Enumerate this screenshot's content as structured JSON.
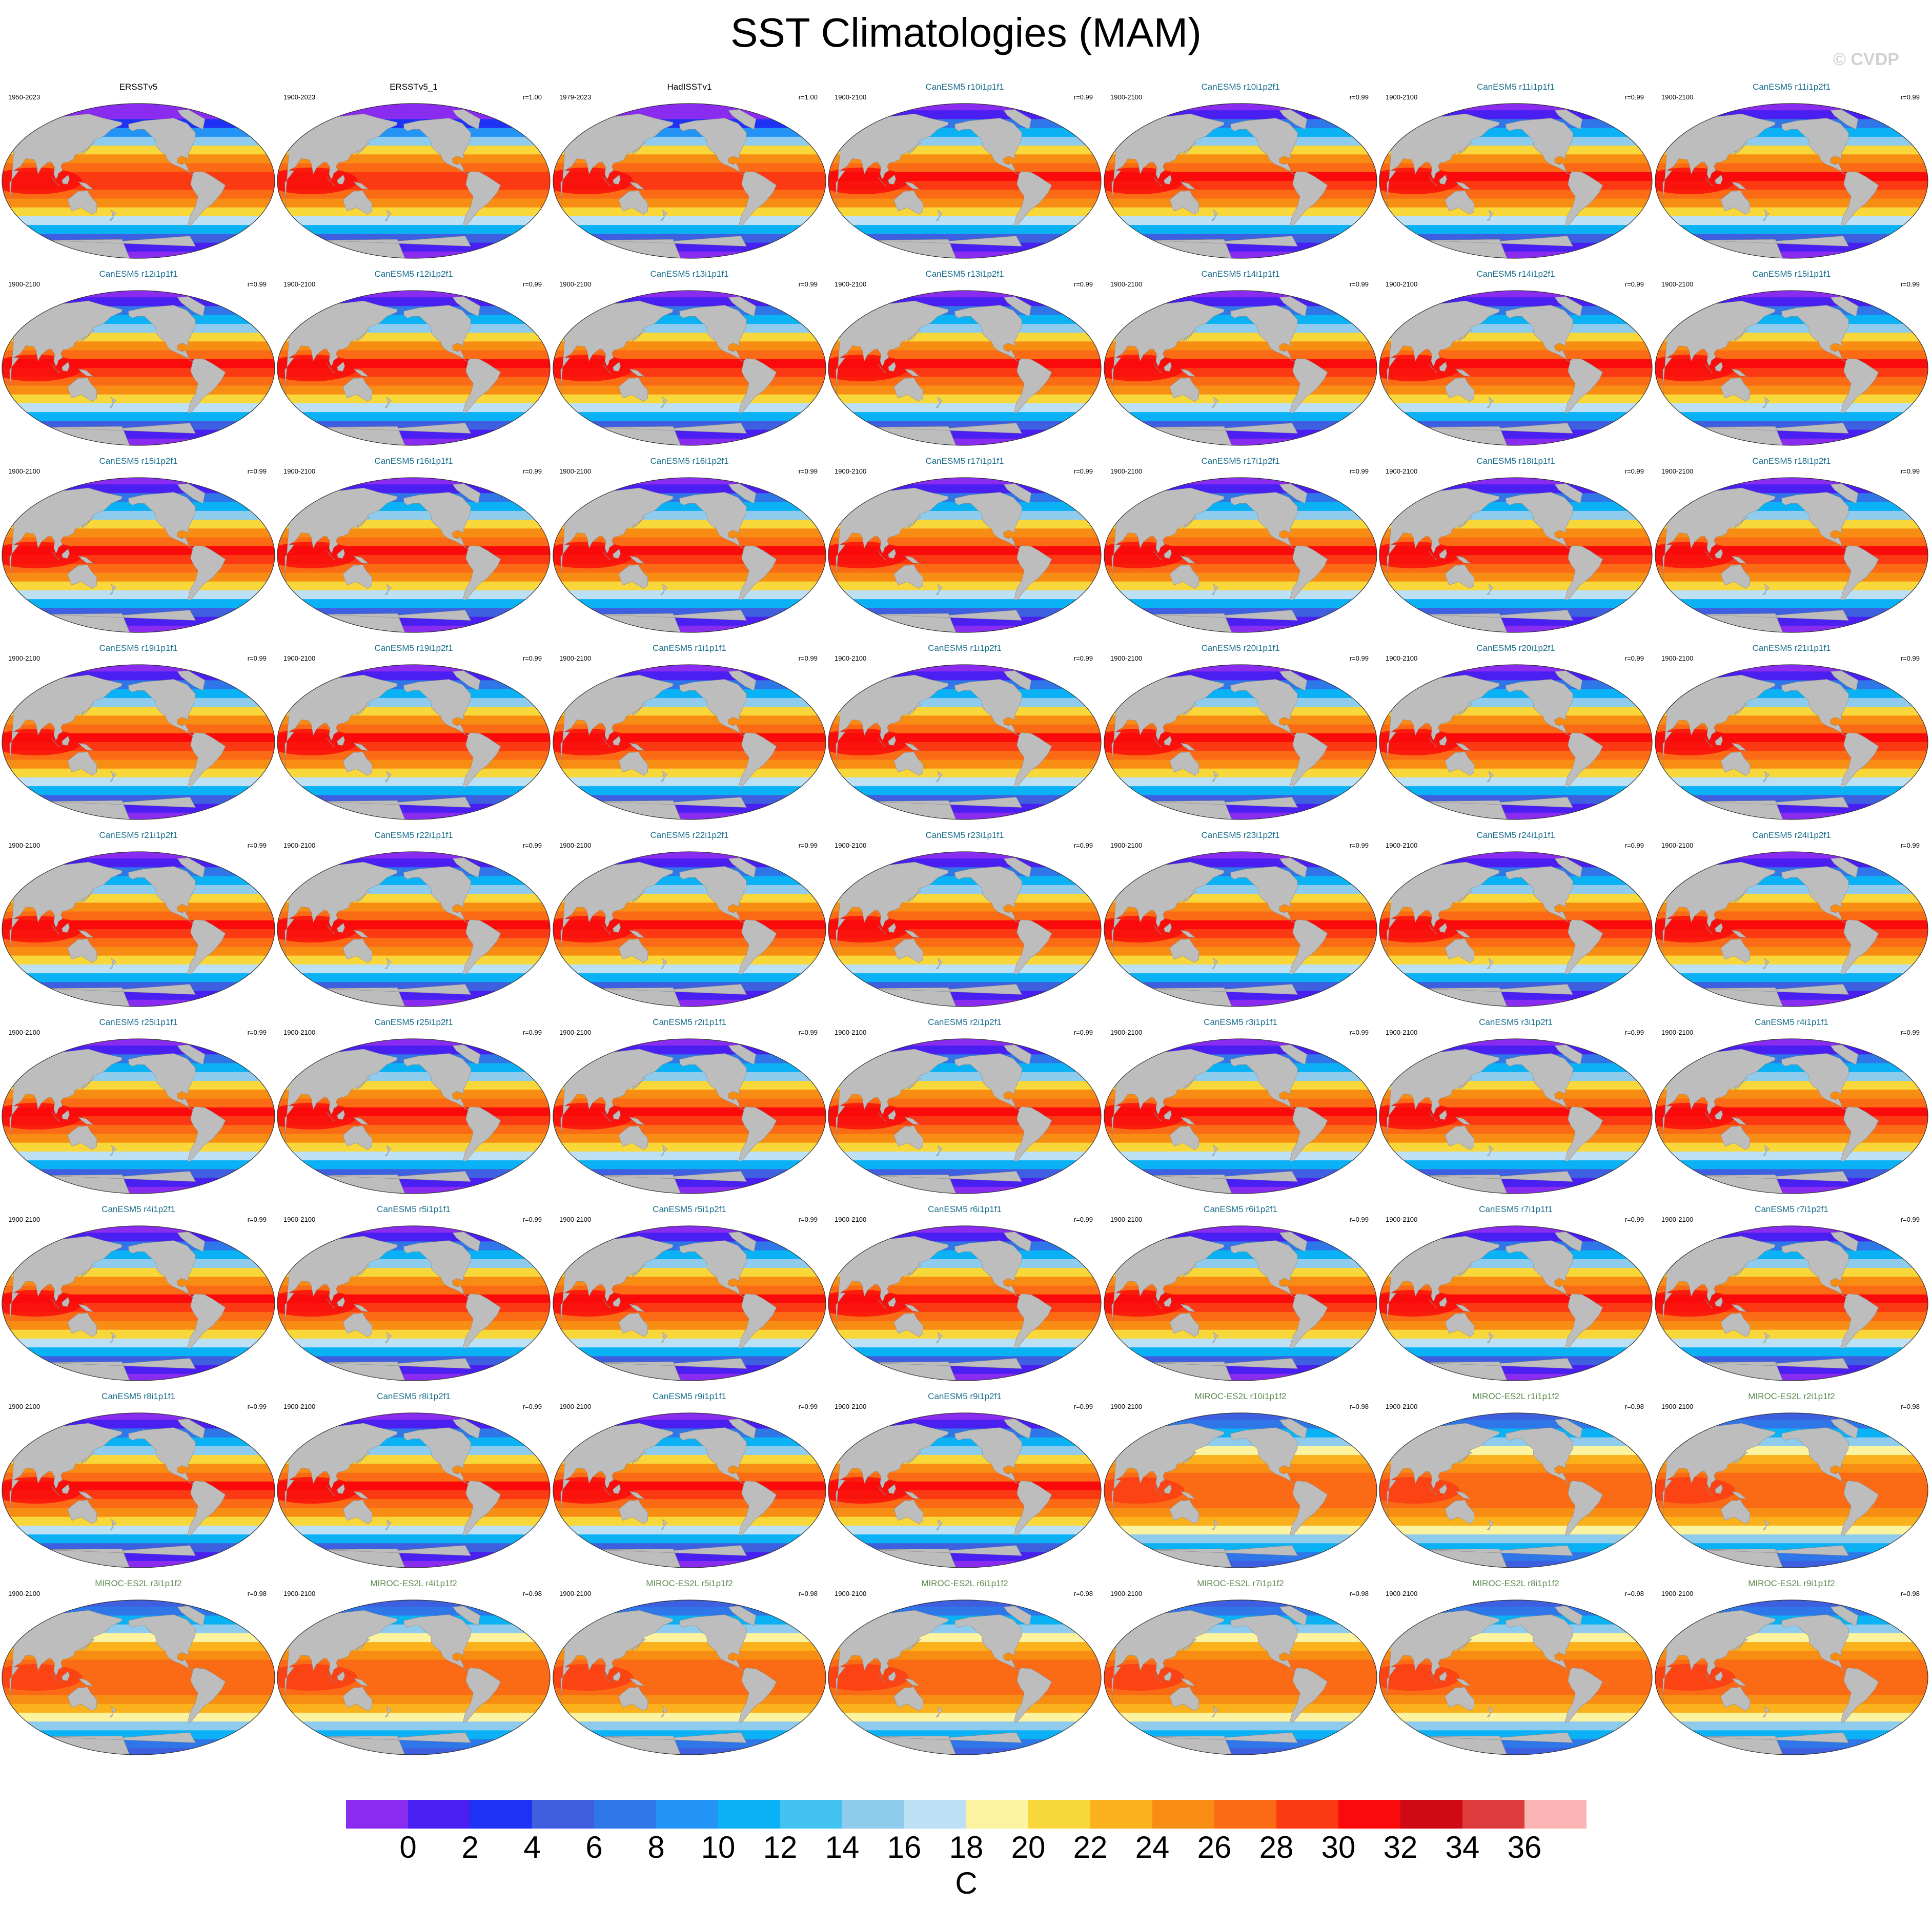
{
  "title": "SST Climatologies (MAM)",
  "watermark": "© CVDP",
  "chart_data": {
    "type": "heatmap",
    "title": "SST Climatologies (MAM)",
    "variable": "SST",
    "season": "MAM",
    "colorbar": {
      "units": "C",
      "levels": [
        0,
        2,
        4,
        6,
        8,
        10,
        12,
        14,
        16,
        18,
        20,
        22,
        24,
        26,
        28,
        30,
        32,
        34,
        36
      ],
      "tick_labels": [
        "0",
        "2",
        "4",
        "6",
        "8",
        "10",
        "12",
        "14",
        "16",
        "18",
        "20",
        "22",
        "24",
        "26",
        "28",
        "30",
        "32",
        "34",
        "36"
      ],
      "colors": [
        "#8a2cf0",
        "#4a1ff2",
        "#1e32f5",
        "#3d5fe0",
        "#2f77e8",
        "#2393f5",
        "#0ab2f5",
        "#42c3f2",
        "#8ecbec",
        "#bde0f4",
        "#fbf3a0",
        "#f8d73a",
        "#fbb11b",
        "#f88d14",
        "#fb6a14",
        "#fb3a14",
        "#fa0a0a",
        "#cf0a14",
        "#dc3c3c",
        "#fbb4b4"
      ]
    },
    "panels": [
      {
        "title": "ERSSTv5",
        "years": "1950-2023",
        "corr": "",
        "type": "obs"
      },
      {
        "title": "ERSSTv5_1",
        "years": "1900-2023",
        "corr": "r=1.00",
        "type": "obs"
      },
      {
        "title": "HadISSTv1",
        "years": "1979-2023",
        "corr": "r=1.00",
        "type": "obs"
      },
      {
        "title": "CanESM5 r10i1p1f1",
        "years": "1900-2100",
        "corr": "r=0.99",
        "type": "canesm"
      },
      {
        "title": "CanESM5 r10i1p2f1",
        "years": "1900-2100",
        "corr": "r=0.99",
        "type": "canesm"
      },
      {
        "title": "CanESM5 r11i1p1f1",
        "years": "1900-2100",
        "corr": "r=0.99",
        "type": "canesm"
      },
      {
        "title": "CanESM5 r11i1p2f1",
        "years": "1900-2100",
        "corr": "r=0.99",
        "type": "canesm"
      },
      {
        "title": "CanESM5 r12i1p1f1",
        "years": "1900-2100",
        "corr": "r=0.99",
        "type": "canesm"
      },
      {
        "title": "CanESM5 r12i1p2f1",
        "years": "1900-2100",
        "corr": "r=0.99",
        "type": "canesm"
      },
      {
        "title": "CanESM5 r13i1p1f1",
        "years": "1900-2100",
        "corr": "r=0.99",
        "type": "canesm"
      },
      {
        "title": "CanESM5 r13i1p2f1",
        "years": "1900-2100",
        "corr": "r=0.99",
        "type": "canesm"
      },
      {
        "title": "CanESM5 r14i1p1f1",
        "years": "1900-2100",
        "corr": "r=0.99",
        "type": "canesm"
      },
      {
        "title": "CanESM5 r14i1p2f1",
        "years": "1900-2100",
        "corr": "r=0.99",
        "type": "canesm"
      },
      {
        "title": "CanESM5 r15i1p1f1",
        "years": "1900-2100",
        "corr": "r=0.99",
        "type": "canesm"
      },
      {
        "title": "CanESM5 r15i1p2f1",
        "years": "1900-2100",
        "corr": "r=0.99",
        "type": "canesm"
      },
      {
        "title": "CanESM5 r16i1p1f1",
        "years": "1900-2100",
        "corr": "r=0.99",
        "type": "canesm"
      },
      {
        "title": "CanESM5 r16i1p2f1",
        "years": "1900-2100",
        "corr": "r=0.99",
        "type": "canesm"
      },
      {
        "title": "CanESM5 r17i1p1f1",
        "years": "1900-2100",
        "corr": "r=0.99",
        "type": "canesm"
      },
      {
        "title": "CanESM5 r17i1p2f1",
        "years": "1900-2100",
        "corr": "r=0.99",
        "type": "canesm"
      },
      {
        "title": "CanESM5 r18i1p1f1",
        "years": "1900-2100",
        "corr": "r=0.99",
        "type": "canesm"
      },
      {
        "title": "CanESM5 r18i1p2f1",
        "years": "1900-2100",
        "corr": "r=0.99",
        "type": "canesm"
      },
      {
        "title": "CanESM5 r19i1p1f1",
        "years": "1900-2100",
        "corr": "r=0.99",
        "type": "canesm"
      },
      {
        "title": "CanESM5 r19i1p2f1",
        "years": "1900-2100",
        "corr": "r=0.99",
        "type": "canesm"
      },
      {
        "title": "CanESM5 r1i1p1f1",
        "years": "1900-2100",
        "corr": "r=0.99",
        "type": "canesm"
      },
      {
        "title": "CanESM5 r1i1p2f1",
        "years": "1900-2100",
        "corr": "r=0.99",
        "type": "canesm"
      },
      {
        "title": "CanESM5 r20i1p1f1",
        "years": "1900-2100",
        "corr": "r=0.99",
        "type": "canesm"
      },
      {
        "title": "CanESM5 r20i1p2f1",
        "years": "1900-2100",
        "corr": "r=0.99",
        "type": "canesm"
      },
      {
        "title": "CanESM5 r21i1p1f1",
        "years": "1900-2100",
        "corr": "r=0.99",
        "type": "canesm"
      },
      {
        "title": "CanESM5 r21i1p2f1",
        "years": "1900-2100",
        "corr": "r=0.99",
        "type": "canesm"
      },
      {
        "title": "CanESM5 r22i1p1f1",
        "years": "1900-2100",
        "corr": "r=0.99",
        "type": "canesm"
      },
      {
        "title": "CanESM5 r22i1p2f1",
        "years": "1900-2100",
        "corr": "r=0.99",
        "type": "canesm"
      },
      {
        "title": "CanESM5 r23i1p1f1",
        "years": "1900-2100",
        "corr": "r=0.99",
        "type": "canesm"
      },
      {
        "title": "CanESM5 r23i1p2f1",
        "years": "1900-2100",
        "corr": "r=0.99",
        "type": "canesm"
      },
      {
        "title": "CanESM5 r24i1p1f1",
        "years": "1900-2100",
        "corr": "r=0.99",
        "type": "canesm"
      },
      {
        "title": "CanESM5 r24i1p2f1",
        "years": "1900-2100",
        "corr": "r=0.99",
        "type": "canesm"
      },
      {
        "title": "CanESM5 r25i1p1f1",
        "years": "1900-2100",
        "corr": "r=0.99",
        "type": "canesm"
      },
      {
        "title": "CanESM5 r25i1p2f1",
        "years": "1900-2100",
        "corr": "r=0.99",
        "type": "canesm"
      },
      {
        "title": "CanESM5 r2i1p1f1",
        "years": "1900-2100",
        "corr": "r=0.99",
        "type": "canesm"
      },
      {
        "title": "CanESM5 r2i1p2f1",
        "years": "1900-2100",
        "corr": "r=0.99",
        "type": "canesm"
      },
      {
        "title": "CanESM5 r3i1p1f1",
        "years": "1900-2100",
        "corr": "r=0.99",
        "type": "canesm"
      },
      {
        "title": "CanESM5 r3i1p2f1",
        "years": "1900-2100",
        "corr": "r=0.99",
        "type": "canesm"
      },
      {
        "title": "CanESM5 r4i1p1f1",
        "years": "1900-2100",
        "corr": "r=0.99",
        "type": "canesm"
      },
      {
        "title": "CanESM5 r4i1p2f1",
        "years": "1900-2100",
        "corr": "r=0.99",
        "type": "canesm"
      },
      {
        "title": "CanESM5 r5i1p1f1",
        "years": "1900-2100",
        "corr": "r=0.99",
        "type": "canesm"
      },
      {
        "title": "CanESM5 r5i1p2f1",
        "years": "1900-2100",
        "corr": "r=0.99",
        "type": "canesm"
      },
      {
        "title": "CanESM5 r6i1p1f1",
        "years": "1900-2100",
        "corr": "r=0.99",
        "type": "canesm"
      },
      {
        "title": "CanESM5 r6i1p2f1",
        "years": "1900-2100",
        "corr": "r=0.99",
        "type": "canesm"
      },
      {
        "title": "CanESM5 r7i1p1f1",
        "years": "1900-2100",
        "corr": "r=0.99",
        "type": "canesm"
      },
      {
        "title": "CanESM5 r7i1p2f1",
        "years": "1900-2100",
        "corr": "r=0.99",
        "type": "canesm"
      },
      {
        "title": "CanESM5 r8i1p1f1",
        "years": "1900-2100",
        "corr": "r=0.99",
        "type": "canesm"
      },
      {
        "title": "CanESM5 r8i1p2f1",
        "years": "1900-2100",
        "corr": "r=0.99",
        "type": "canesm"
      },
      {
        "title": "CanESM5 r9i1p1f1",
        "years": "1900-2100",
        "corr": "r=0.99",
        "type": "canesm"
      },
      {
        "title": "CanESM5 r9i1p2f1",
        "years": "1900-2100",
        "corr": "r=0.99",
        "type": "canesm"
      },
      {
        "title": "MIROC-ES2L r10i1p1f2",
        "years": "1900-2100",
        "corr": "r=0.98",
        "type": "miroc"
      },
      {
        "title": "MIROC-ES2L r1i1p1f2",
        "years": "1900-2100",
        "corr": "r=0.98",
        "type": "miroc"
      },
      {
        "title": "MIROC-ES2L r2i1p1f2",
        "years": "1900-2100",
        "corr": "r=0.98",
        "type": "miroc"
      },
      {
        "title": "MIROC-ES2L r3i1p1f2",
        "years": "1900-2100",
        "corr": "r=0.98",
        "type": "miroc"
      },
      {
        "title": "MIROC-ES2L r4i1p1f2",
        "years": "1900-2100",
        "corr": "r=0.98",
        "type": "miroc"
      },
      {
        "title": "MIROC-ES2L r5i1p1f2",
        "years": "1900-2100",
        "corr": "r=0.98",
        "type": "miroc"
      },
      {
        "title": "MIROC-ES2L r6i1p1f2",
        "years": "1900-2100",
        "corr": "r=0.98",
        "type": "miroc"
      },
      {
        "title": "MIROC-ES2L r7i1p1f2",
        "years": "1900-2100",
        "corr": "r=0.98",
        "type": "miroc"
      },
      {
        "title": "MIROC-ES2L r8i1p1f2",
        "years": "1900-2100",
        "corr": "r=0.98",
        "type": "miroc"
      },
      {
        "title": "MIROC-ES2L r9i1p1f2",
        "years": "1900-2100",
        "corr": "r=0.98",
        "type": "miroc"
      }
    ],
    "title_colors": {
      "obs": "#000000",
      "canesm": "#1a6e8c",
      "miroc": "#5e8a4e"
    },
    "land_color": "#bdbdbd"
  }
}
